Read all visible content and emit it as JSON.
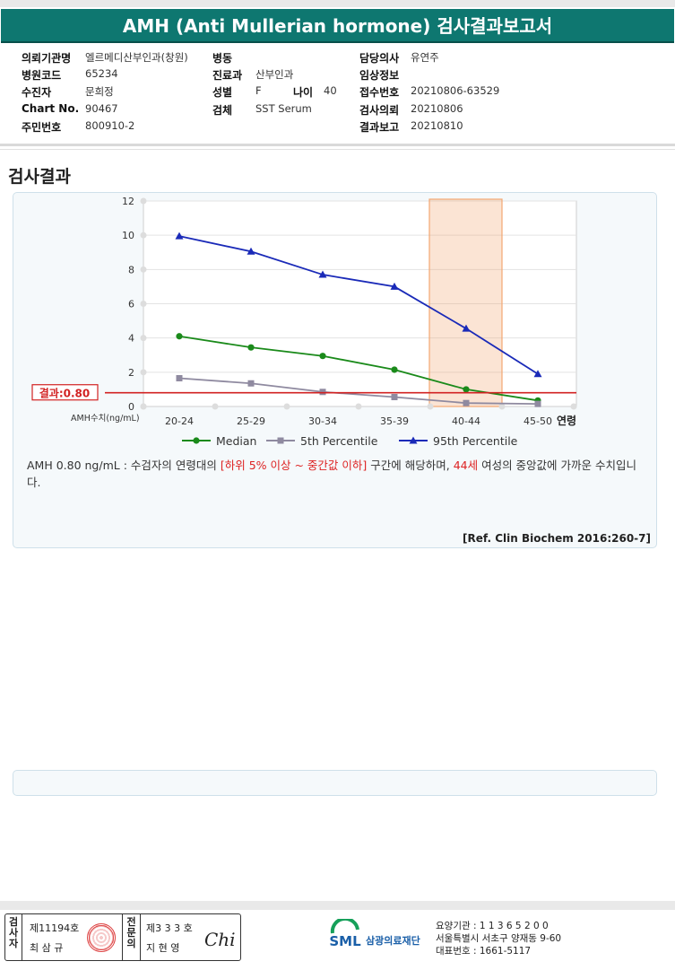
{
  "header": {
    "title": "AMH (Anti Mullerian hormone) 검사결과보고서"
  },
  "patient_info": {
    "institution_label": "의뢰기관명",
    "institution": "엘르메디산부인과(창원)",
    "hospital_code_label": "병원코드",
    "hospital_code": "65234",
    "patient_label": "수진자",
    "patient": "문희정",
    "chart_label": "Chart No.",
    "chart_no": "90467",
    "id_label": "주민번호",
    "id_no": "800910-2",
    "ward_label": "병동",
    "ward": "",
    "dept_label": "진료과",
    "dept": "산부인과",
    "sex_label": "성별",
    "sex": "F",
    "age_label": "나이",
    "age": "40",
    "specimen_label": "검체",
    "specimen": "SST Serum",
    "doctor_label": "담당의사",
    "doctor": "유연주",
    "clinical_label": "임상정보",
    "clinical": "",
    "receipt_label": "접수번호",
    "receipt": "20210806-63529",
    "request_label": "검사의뢰",
    "request": "20210806",
    "report_label": "결과보고",
    "report": "20210810"
  },
  "section": {
    "title": "검사결과"
  },
  "chart_data": {
    "type": "line",
    "categories": [
      "20-24",
      "25-29",
      "30-34",
      "35-39",
      "40-44",
      "45-50"
    ],
    "x_axis_suffix": "연령",
    "ylabel": "AMH수치(ng/mL)",
    "ylim": [
      0,
      12
    ],
    "yticks": [
      0,
      2,
      4,
      6,
      8,
      10,
      12
    ],
    "grid": true,
    "legend_position": "bottom",
    "series": [
      {
        "name": "Median",
        "color": "#1a8a1a",
        "marker": "circle",
        "values": [
          4.1,
          3.45,
          2.95,
          2.15,
          1.0,
          0.35
        ]
      },
      {
        "name": "5th Percentile",
        "color": "#8f8aa0",
        "marker": "square",
        "values": [
          1.65,
          1.35,
          0.85,
          0.55,
          0.2,
          0.15
        ]
      },
      {
        "name": "95th Percentile",
        "color": "#1a2ab8",
        "marker": "triangle",
        "values": [
          9.95,
          9.05,
          7.7,
          7.0,
          4.55,
          1.9
        ]
      }
    ],
    "highlight": {
      "category": "40-44",
      "color": "#f2a772"
    },
    "result_line": {
      "label": "결과:0.80",
      "value": 0.8,
      "color": "#d22222"
    }
  },
  "interpretation": {
    "part1": "AMH  0.80 ng/mL : 수검자의 연령대의 ",
    "highlight1": "[하위 5% 이상 ~ 중간값 이하]",
    "part2": " 구간에 해당하며, ",
    "highlight2": "44세",
    "part3": " 여성의 중앙값에 가까운 수치입니다."
  },
  "reference": "[Ref. Clin Biochem 2016:260-7]",
  "signatures": {
    "examiner_label": "검사자",
    "examiner_no": "제11194호",
    "examiner_name": "최 삼 규",
    "specialist_label": "전문의",
    "specialist_no": "제3 3 3 호",
    "specialist_name": "지 현 영",
    "signature_mark": "Chi"
  },
  "lab": {
    "logo_text": "SML",
    "name": "삼광의료재단",
    "agency": "요양기관 : 1 1 3 6 5 2 0 0",
    "address": "서울특별시 서초구 양재동 9-60",
    "phone": "대표번호 : 1661-5117"
  }
}
